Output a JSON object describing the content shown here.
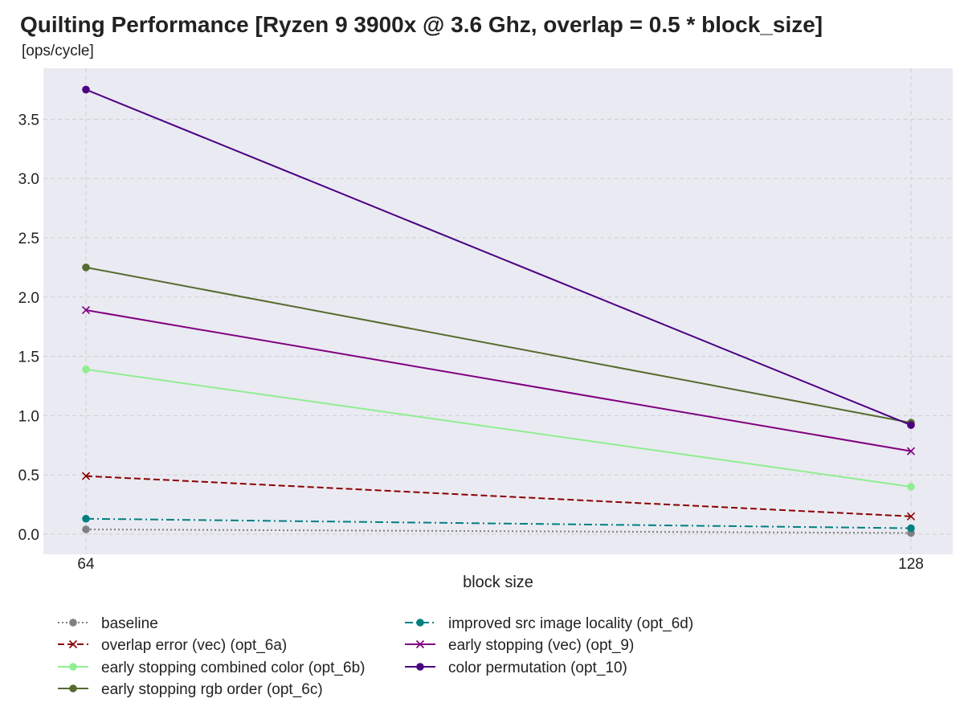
{
  "chart_data": {
    "type": "line",
    "title": "Quilting Performance [Ryzen 9 3900x @ 3.6 Ghz, overlap = 0.5 * block_size]",
    "subtitle": "[ops/cycle]",
    "xlabel": "block size",
    "ylabel": "",
    "x": [
      64,
      128
    ],
    "x_tick_labels": [
      "64",
      "128"
    ],
    "y_ticks": [
      0.0,
      0.5,
      1.0,
      1.5,
      2.0,
      2.5,
      3.0,
      3.5
    ],
    "y_tick_labels": [
      "0.0",
      "0.5",
      "1.0",
      "1.5",
      "2.0",
      "2.5",
      "3.0",
      "3.5"
    ],
    "ylim": [
      -0.17,
      3.93
    ],
    "grid": true,
    "legend_position": "bottom",
    "background": "#eaeaf2",
    "series": [
      {
        "name": "baseline",
        "values": [
          0.04,
          0.01
        ],
        "color": "#808080",
        "dash": "dotted",
        "marker": "circle"
      },
      {
        "name": "overlap error (vec) (opt_6a)",
        "values": [
          0.49,
          0.15
        ],
        "color": "#8b0000",
        "dash": "dashed",
        "marker": "x"
      },
      {
        "name": "early stopping combined color (opt_6b)",
        "values": [
          1.39,
          0.4
        ],
        "color": "#90ee90",
        "dash": "solid",
        "marker": "circle"
      },
      {
        "name": "early stopping rgb order (opt_6c)",
        "values": [
          2.25,
          0.94
        ],
        "color": "#556b2f",
        "dash": "solid",
        "marker": "circle"
      },
      {
        "name": "improved src image locality (opt_6d)",
        "values": [
          0.13,
          0.05
        ],
        "color": "#008080",
        "dash": "dashdot",
        "marker": "circle"
      },
      {
        "name": "early stopping (vec) (opt_9)",
        "values": [
          1.89,
          0.7
        ],
        "color": "#800080",
        "dash": "solid",
        "marker": "x"
      },
      {
        "name": "color permutation (opt_10)",
        "values": [
          3.75,
          0.92
        ],
        "color": "#4b0082",
        "dash": "solid",
        "marker": "circle"
      }
    ]
  }
}
